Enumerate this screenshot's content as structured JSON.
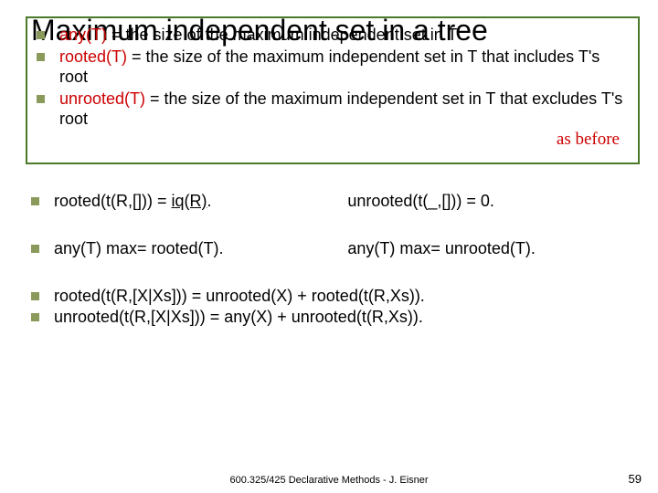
{
  "title": "Maximum independent set in a tree",
  "box": {
    "border_color": "#4a7a2a",
    "items": [
      {
        "html": "<span class='red'>any(T)</span> = the size of the maximum independent set in T"
      },
      {
        "html": "<span class='red'>rooted(T)</span> = the size of the maximum independent set in T that includes T's root"
      },
      {
        "html": "<span class='red'>unrooted(T)</span> = the size of the maximum independent set in T that excludes T's root"
      }
    ],
    "as_before": "as before"
  },
  "row1": {
    "left": "rooted(t(R,[])) = <span class='underline'>iq(R)</span>.",
    "right": "unrooted(t(_,[])) = 0."
  },
  "row2": {
    "left": "any(T) max= rooted(T).",
    "right": "any(T) max= unrooted(T)."
  },
  "tail": [
    "rooted(t(R,[X|Xs])) = unrooted(X) + rooted(t(R,Xs)).",
    "unrooted(t(R,[X|Xs])) = any(X) + unrooted(t(R,Xs))."
  ],
  "footer": "600.325/425 Declarative Methods - J. Eisner",
  "page": "59",
  "bullet_color": "#8a9a5b"
}
